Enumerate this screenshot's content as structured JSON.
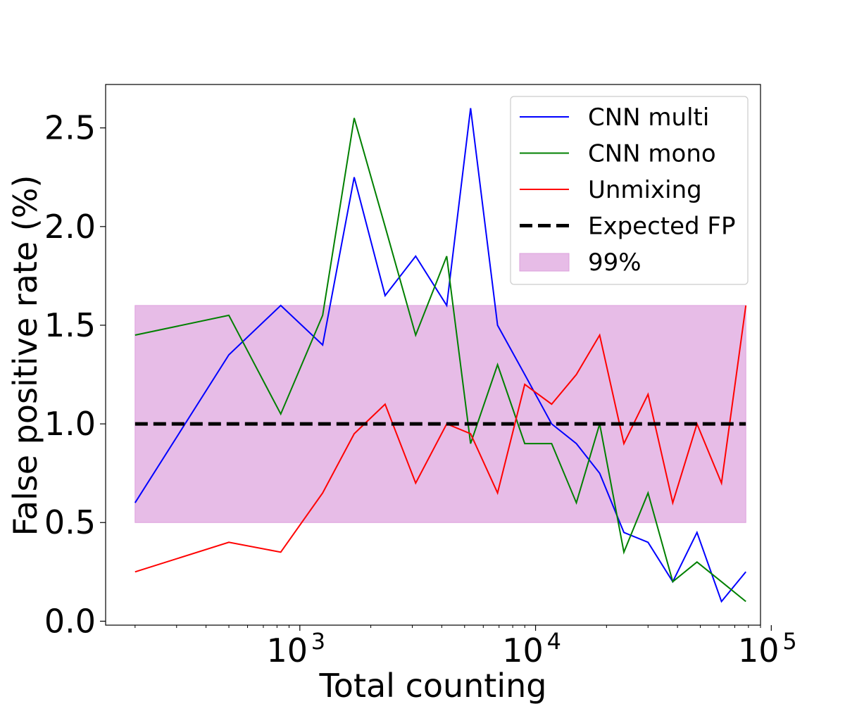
{
  "chart_data": {
    "type": "line",
    "xscale": "log",
    "xlim": [
      150,
      90000
    ],
    "ylim": [
      -0.02,
      2.72
    ],
    "xlabel": "Total counting",
    "ylabel": "False positive rate (%)",
    "xticks": [
      {
        "value": 1000,
        "base": "10",
        "exp": "3"
      },
      {
        "value": 10000,
        "base": "10",
        "exp": "4"
      },
      {
        "value": 100000,
        "base": "10",
        "exp": "5"
      }
    ],
    "yticks": [
      "0.0",
      "0.5",
      "1.0",
      "1.5",
      "2.0",
      "2.5"
    ],
    "x": [
      200,
      500,
      830,
      1250,
      1700,
      2300,
      3100,
      4200,
      5300,
      6900,
      9000,
      11700,
      14900,
      18700,
      23700,
      30000,
      38200,
      48400,
      61500,
      78000
    ],
    "series": [
      {
        "name": "CNN multi",
        "color": "#0000ff",
        "values": [
          0.6,
          1.35,
          1.6,
          1.4,
          2.25,
          1.65,
          1.85,
          1.6,
          2.6,
          1.5,
          1.25,
          1.0,
          0.9,
          0.75,
          0.45,
          0.4,
          0.2,
          0.45,
          0.1,
          0.25
        ]
      },
      {
        "name": "CNN mono",
        "color": "#008000",
        "values": [
          1.45,
          1.55,
          1.05,
          1.55,
          2.55,
          2.0,
          1.45,
          1.85,
          0.9,
          1.3,
          0.9,
          0.9,
          0.6,
          1.0,
          0.35,
          0.65,
          0.2,
          0.3,
          0.2,
          0.1
        ]
      },
      {
        "name": "Unmixing",
        "color": "#ff0000",
        "values": [
          0.25,
          0.4,
          0.35,
          0.65,
          0.95,
          1.1,
          0.7,
          1.0,
          0.95,
          0.65,
          1.2,
          1.1,
          1.25,
          1.45,
          0.9,
          1.15,
          0.6,
          1.0,
          0.7,
          1.6
        ]
      }
    ],
    "expected": {
      "name": "Expected FP",
      "value": 1.0,
      "color": "#000000"
    },
    "band": {
      "name": "99%",
      "low": 0.5,
      "high": 1.6,
      "color": "#dda0dd"
    },
    "legend_position": "top-right",
    "grid": false
  }
}
